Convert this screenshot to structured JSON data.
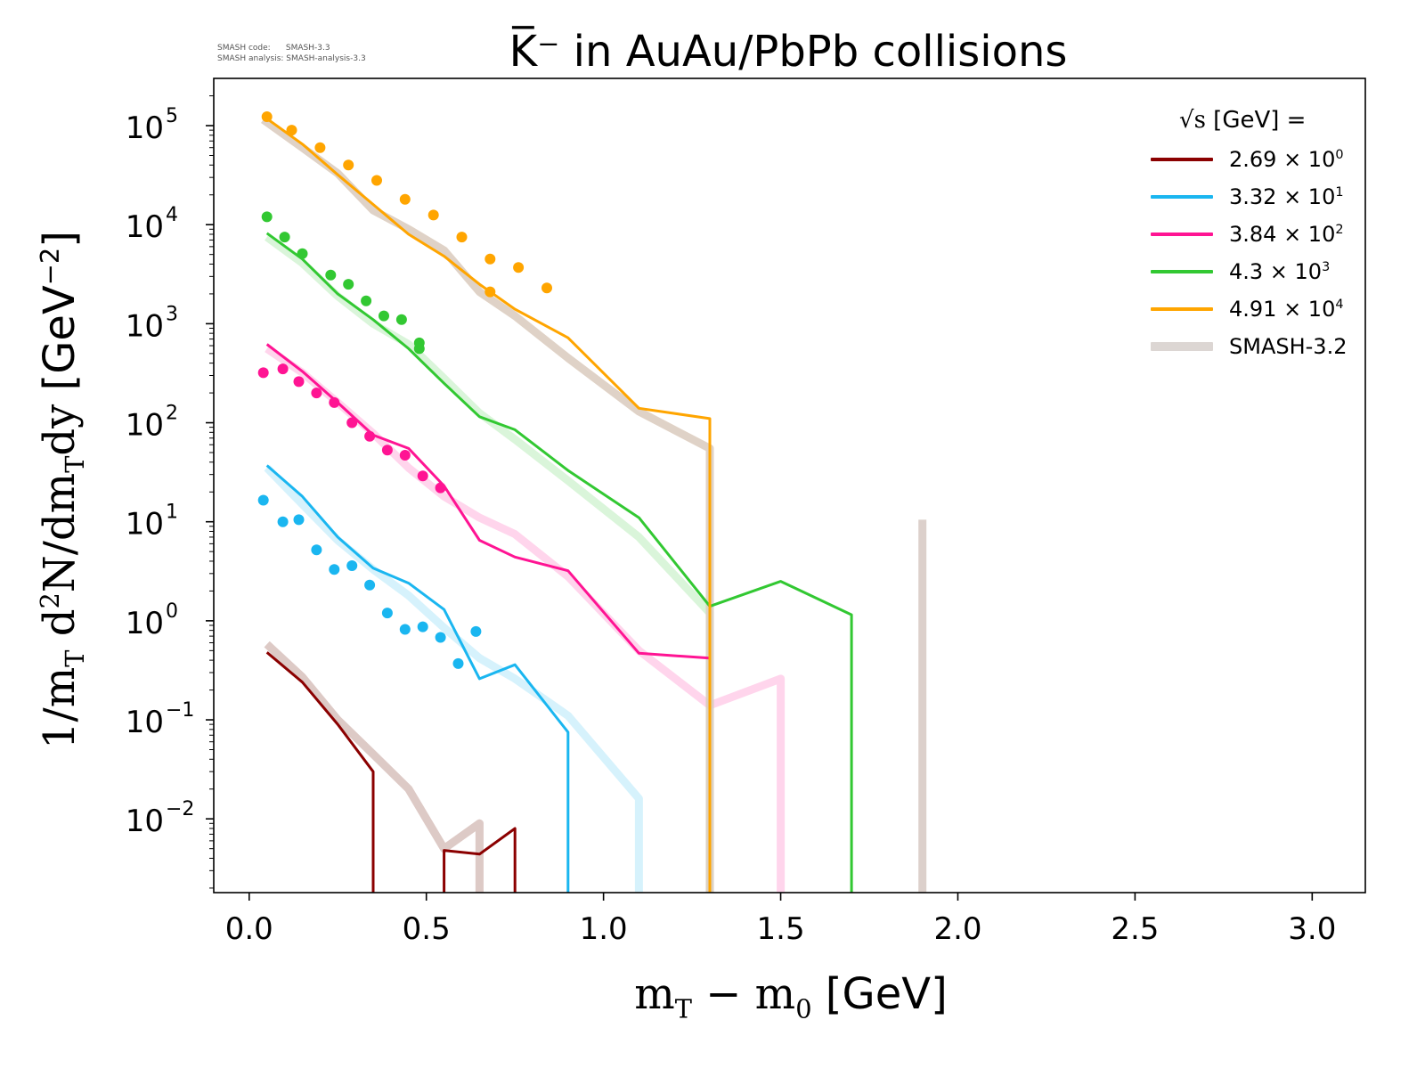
{
  "header": {
    "credit_code": "SMASH code:      SMASH-3.3",
    "credit_analysis": "SMASH analysis: SMASH-analysis-3.3",
    "title": "K̅⁻ in AuAu/PbPb collisions"
  },
  "axes": {
    "ylabel_main": "1/m",
    "ylabel_sub": "T",
    "ylabel_mid": " d",
    "ylabel_sup": "2",
    "ylabel_rest": "N/dm",
    "ylabel_sub2": "T",
    "ylabel_end": "dy",
    "ylabel_unit": " [GeV",
    "ylabel_unit_sup": "−2",
    "ylabel_unit_close": "]",
    "xlabel_m": "m",
    "xlabel_sub": "T",
    "xlabel_minus": " − m",
    "xlabel_sub0": "0",
    "xlabel_unit": " [GeV]"
  },
  "legend": {
    "head_sqrt": "√s",
    "head_rest": "  [GeV] =",
    "entries": [
      {
        "label": "2.69 × 10",
        "exp": "0",
        "color": "#8b0000"
      },
      {
        "label": "3.32 × 10",
        "exp": "1",
        "color": "#1ab6f0"
      },
      {
        "label": "3.84 × 10",
        "exp": "2",
        "color": "#ff1493"
      },
      {
        "label": "4.3 × 10",
        "exp": "3",
        "color": "#32c832"
      },
      {
        "label": "4.91 × 10",
        "exp": "4",
        "color": "#ffa500"
      },
      {
        "label": "SMASH-3.2",
        "exp": "",
        "color": "#dcd6d3"
      }
    ]
  },
  "chart_data": {
    "type": "line",
    "yscale": "log",
    "xlim": [
      -0.1,
      3.15
    ],
    "ylim": [
      0.0018,
      300000
    ],
    "xticks": [
      0.0,
      0.5,
      1.0,
      1.5,
      2.0,
      2.5,
      3.0
    ],
    "xtick_labels": [
      "0.0",
      "0.5",
      "1.0",
      "1.5",
      "2.0",
      "2.5",
      "3.0"
    ],
    "yticks": [
      0.01,
      0.1,
      1,
      10,
      100,
      1000,
      10000,
      100000
    ],
    "ytick_base": "10",
    "ytick_exps": [
      "−2",
      "−1",
      "0",
      "1",
      "2",
      "3",
      "4",
      "5"
    ],
    "series": [
      {
        "name": "2.69e0",
        "color": "#8b0000",
        "smash33": [
          [
            0.05,
            0.48
          ],
          [
            0.15,
            0.24
          ],
          [
            0.25,
            0.09
          ],
          [
            0.35,
            0.03
          ],
          [
            0.35,
            0.0018
          ],
          [
            0.35,
            0.0018
          ]
        ],
        "smash33_b": [
          [
            0.55,
            0.0018
          ],
          [
            0.55,
            0.0048
          ],
          [
            0.65,
            0.0044
          ],
          [
            0.75,
            0.008
          ],
          [
            0.75,
            0.0018
          ]
        ],
        "smash32": [
          [
            0.05,
            0.58
          ],
          [
            0.15,
            0.27
          ],
          [
            0.25,
            0.1
          ],
          [
            0.35,
            0.045
          ],
          [
            0.45,
            0.02
          ],
          [
            0.55,
            0.005
          ],
          [
            0.65,
            0.009
          ],
          [
            0.65,
            0.0018
          ]
        ],
        "data": []
      },
      {
        "name": "3.32e1",
        "color": "#1ab6f0",
        "smash33": [
          [
            0.05,
            37
          ],
          [
            0.15,
            18
          ],
          [
            0.25,
            7
          ],
          [
            0.35,
            3.4
          ],
          [
            0.45,
            2.4
          ],
          [
            0.55,
            1.3
          ],
          [
            0.65,
            0.26
          ],
          [
            0.75,
            0.36
          ],
          [
            0.9,
            0.075
          ],
          [
            0.9,
            0.0018
          ]
        ],
        "smash32": [
          [
            0.05,
            35
          ],
          [
            0.15,
            15
          ],
          [
            0.25,
            6.5
          ],
          [
            0.35,
            3.3
          ],
          [
            0.45,
            1.8
          ],
          [
            0.55,
            0.85
          ],
          [
            0.65,
            0.42
          ],
          [
            0.75,
            0.26
          ],
          [
            0.9,
            0.11
          ],
          [
            1.1,
            0.016
          ],
          [
            1.1,
            0.0018
          ]
        ],
        "data": [
          [
            0.04,
            16.5
          ],
          [
            0.095,
            10
          ],
          [
            0.14,
            10.5
          ],
          [
            0.19,
            5.2
          ],
          [
            0.24,
            3.3
          ],
          [
            0.29,
            3.6
          ],
          [
            0.34,
            2.3
          ],
          [
            0.39,
            1.2
          ],
          [
            0.44,
            0.82
          ],
          [
            0.49,
            0.87
          ],
          [
            0.54,
            0.68
          ],
          [
            0.59,
            0.37
          ],
          [
            0.64,
            0.78
          ]
        ]
      },
      {
        "name": "3.84e2",
        "color": "#ff1493",
        "smash33": [
          [
            0.05,
            620
          ],
          [
            0.15,
            330
          ],
          [
            0.25,
            160
          ],
          [
            0.35,
            75
          ],
          [
            0.45,
            55
          ],
          [
            0.55,
            23
          ],
          [
            0.65,
            6.5
          ],
          [
            0.75,
            4.4
          ],
          [
            0.9,
            3.2
          ],
          [
            1.1,
            0.47
          ],
          [
            1.3,
            0.42
          ]
        ],
        "smash32": [
          [
            0.05,
            560
          ],
          [
            0.15,
            320
          ],
          [
            0.25,
            160
          ],
          [
            0.35,
            78
          ],
          [
            0.45,
            35
          ],
          [
            0.55,
            18
          ],
          [
            0.65,
            11
          ],
          [
            0.75,
            7.5
          ],
          [
            0.9,
            2.8
          ],
          [
            1.1,
            0.5
          ],
          [
            1.3,
            0.14
          ],
          [
            1.5,
            0.26
          ],
          [
            1.5,
            0.0018
          ]
        ],
        "data": [
          [
            0.04,
            320
          ],
          [
            0.095,
            350
          ],
          [
            0.14,
            260
          ],
          [
            0.19,
            200
          ],
          [
            0.24,
            160
          ],
          [
            0.29,
            100
          ],
          [
            0.34,
            73
          ],
          [
            0.39,
            53
          ],
          [
            0.44,
            47
          ],
          [
            0.49,
            29
          ],
          [
            0.54,
            22
          ]
        ]
      },
      {
        "name": "4.3e3",
        "color": "#32c832",
        "smash33": [
          [
            0.05,
            8200
          ],
          [
            0.15,
            4500
          ],
          [
            0.25,
            2000
          ],
          [
            0.35,
            1100
          ],
          [
            0.45,
            560
          ],
          [
            0.55,
            250
          ],
          [
            0.65,
            115
          ],
          [
            0.75,
            85
          ],
          [
            0.9,
            33
          ],
          [
            1.1,
            11
          ],
          [
            1.3,
            1.4
          ],
          [
            1.3,
            0.0018
          ]
        ],
        "smash33_b": [
          [
            1.3,
            1.4
          ],
          [
            1.5,
            2.5
          ],
          [
            1.7,
            1.15
          ],
          [
            1.7,
            0.0018
          ]
        ],
        "smash32": [
          [
            0.05,
            7500
          ],
          [
            0.15,
            4100
          ],
          [
            0.25,
            1900
          ],
          [
            0.35,
            1000
          ],
          [
            0.45,
            620
          ],
          [
            0.55,
            280
          ],
          [
            0.65,
            125
          ],
          [
            0.75,
            68
          ],
          [
            0.9,
            26
          ],
          [
            1.1,
            7
          ],
          [
            1.3,
            1.2
          ],
          [
            1.3,
            0.0018
          ]
        ],
        "data": [
          [
            0.05,
            12000
          ],
          [
            0.1,
            7500
          ],
          [
            0.15,
            5100
          ],
          [
            0.23,
            3100
          ],
          [
            0.28,
            2500
          ],
          [
            0.33,
            1700
          ],
          [
            0.38,
            1200
          ],
          [
            0.43,
            1100
          ],
          [
            0.48,
            640
          ],
          [
            0.48,
            560
          ]
        ]
      },
      {
        "name": "4.91e4",
        "color": "#ffa500",
        "smash33": [
          [
            0.04,
            125000
          ],
          [
            0.15,
            65000
          ],
          [
            0.25,
            32000
          ],
          [
            0.35,
            16000
          ],
          [
            0.45,
            8000
          ],
          [
            0.55,
            4800
          ],
          [
            0.65,
            2500
          ],
          [
            0.75,
            1400
          ],
          [
            0.9,
            720
          ],
          [
            1.1,
            140
          ],
          [
            1.3,
            110
          ],
          [
            1.3,
            0.0018
          ]
        ],
        "smash32": [
          [
            0.04,
            115000
          ],
          [
            0.15,
            60000
          ],
          [
            0.25,
            33000
          ],
          [
            0.35,
            14000
          ],
          [
            0.45,
            9000
          ],
          [
            0.55,
            5500
          ],
          [
            0.65,
            2100
          ],
          [
            0.75,
            1200
          ],
          [
            0.9,
            450
          ],
          [
            1.1,
            130
          ],
          [
            1.3,
            55
          ],
          [
            1.3,
            0.0018
          ]
        ],
        "data": [
          [
            0.05,
            123000
          ],
          [
            0.12,
            90000
          ],
          [
            0.2,
            60000
          ],
          [
            0.28,
            40000
          ],
          [
            0.36,
            28000
          ],
          [
            0.44,
            18000
          ],
          [
            0.52,
            12500
          ],
          [
            0.6,
            7500
          ],
          [
            0.68,
            4500
          ],
          [
            0.76,
            3700
          ],
          [
            0.84,
            2300
          ],
          [
            0.68,
            2100
          ]
        ]
      },
      {
        "name": "SMASH-3.2 spike",
        "color": "#dcd6d3",
        "smash32": [
          [
            1.9,
            0.0018
          ],
          [
            1.9,
            10.5
          ]
        ],
        "data": []
      }
    ]
  }
}
